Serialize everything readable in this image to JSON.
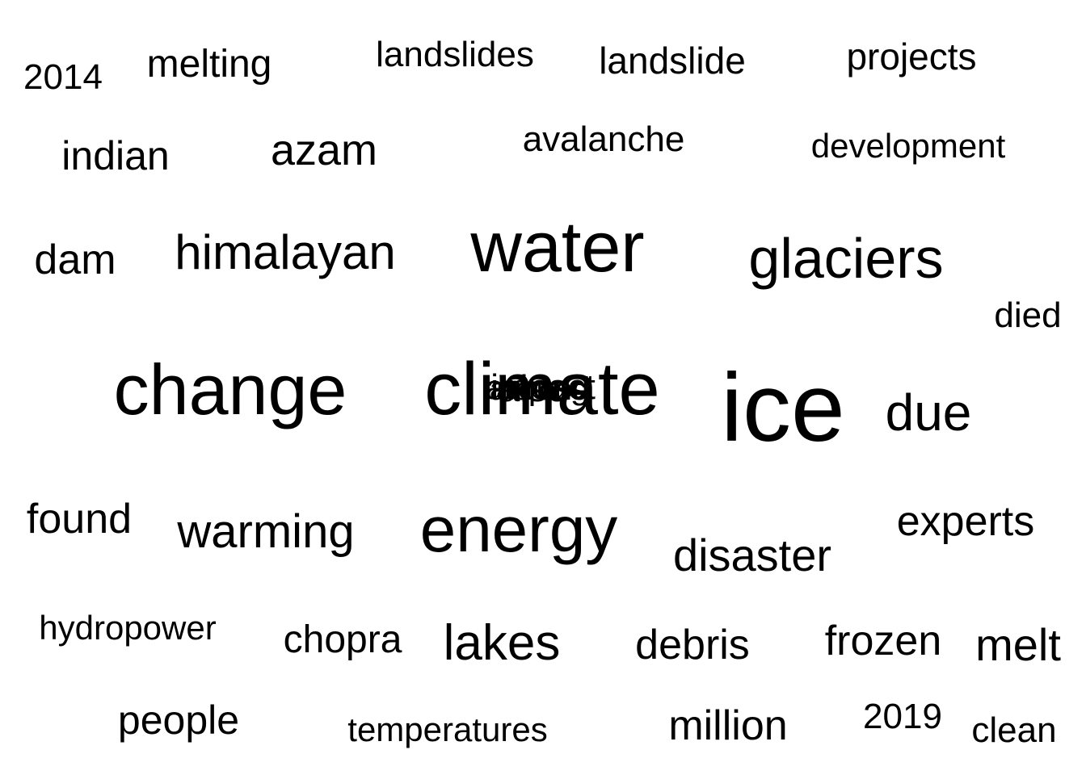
{
  "cloud": {
    "words": [
      {
        "text": "2014",
        "weight": 1
      },
      {
        "text": "melting",
        "weight": 2
      },
      {
        "text": "landslides",
        "weight": 1
      },
      {
        "text": "landslide",
        "weight": 2
      },
      {
        "text": "projects",
        "weight": 2
      },
      {
        "text": "indian",
        "weight": 2
      },
      {
        "text": "azam",
        "weight": 2
      },
      {
        "text": "avalanche",
        "weight": 1
      },
      {
        "text": "development",
        "weight": 1
      },
      {
        "text": "dam",
        "weight": 2
      },
      {
        "text": "himalayan",
        "weight": 3
      },
      {
        "text": "water",
        "weight": 5
      },
      {
        "text": "glaciers",
        "weight": 4
      },
      {
        "text": "died",
        "weight": 1
      },
      {
        "text": "change",
        "weight": 5
      },
      {
        "text": "climate",
        "weight": 5
      },
      {
        "text": "ice",
        "weight": 6
      },
      {
        "text": "due",
        "weight": 3
      },
      {
        "text": "found",
        "weight": 2
      },
      {
        "text": "warming",
        "weight": 3
      },
      {
        "text": "energy",
        "weight": 5
      },
      {
        "text": "disaster",
        "weight": 3
      },
      {
        "text": "experts",
        "weight": 2
      },
      {
        "text": "hydropower",
        "weight": 1
      },
      {
        "text": "chopra",
        "weight": 2
      },
      {
        "text": "lakes",
        "weight": 3
      },
      {
        "text": "debris",
        "weight": 2
      },
      {
        "text": "frozen",
        "weight": 2
      },
      {
        "text": "melt",
        "weight": 3
      },
      {
        "text": "people",
        "weight": 2
      },
      {
        "text": "temperatures",
        "weight": 1
      },
      {
        "text": "million",
        "weight": 2
      },
      {
        "text": "2019",
        "weight": 1
      },
      {
        "text": "clean",
        "weight": 1
      }
    ],
    "overlap_cluster": [
      "impact",
      "around",
      "among",
      "across",
      "also"
    ]
  }
}
